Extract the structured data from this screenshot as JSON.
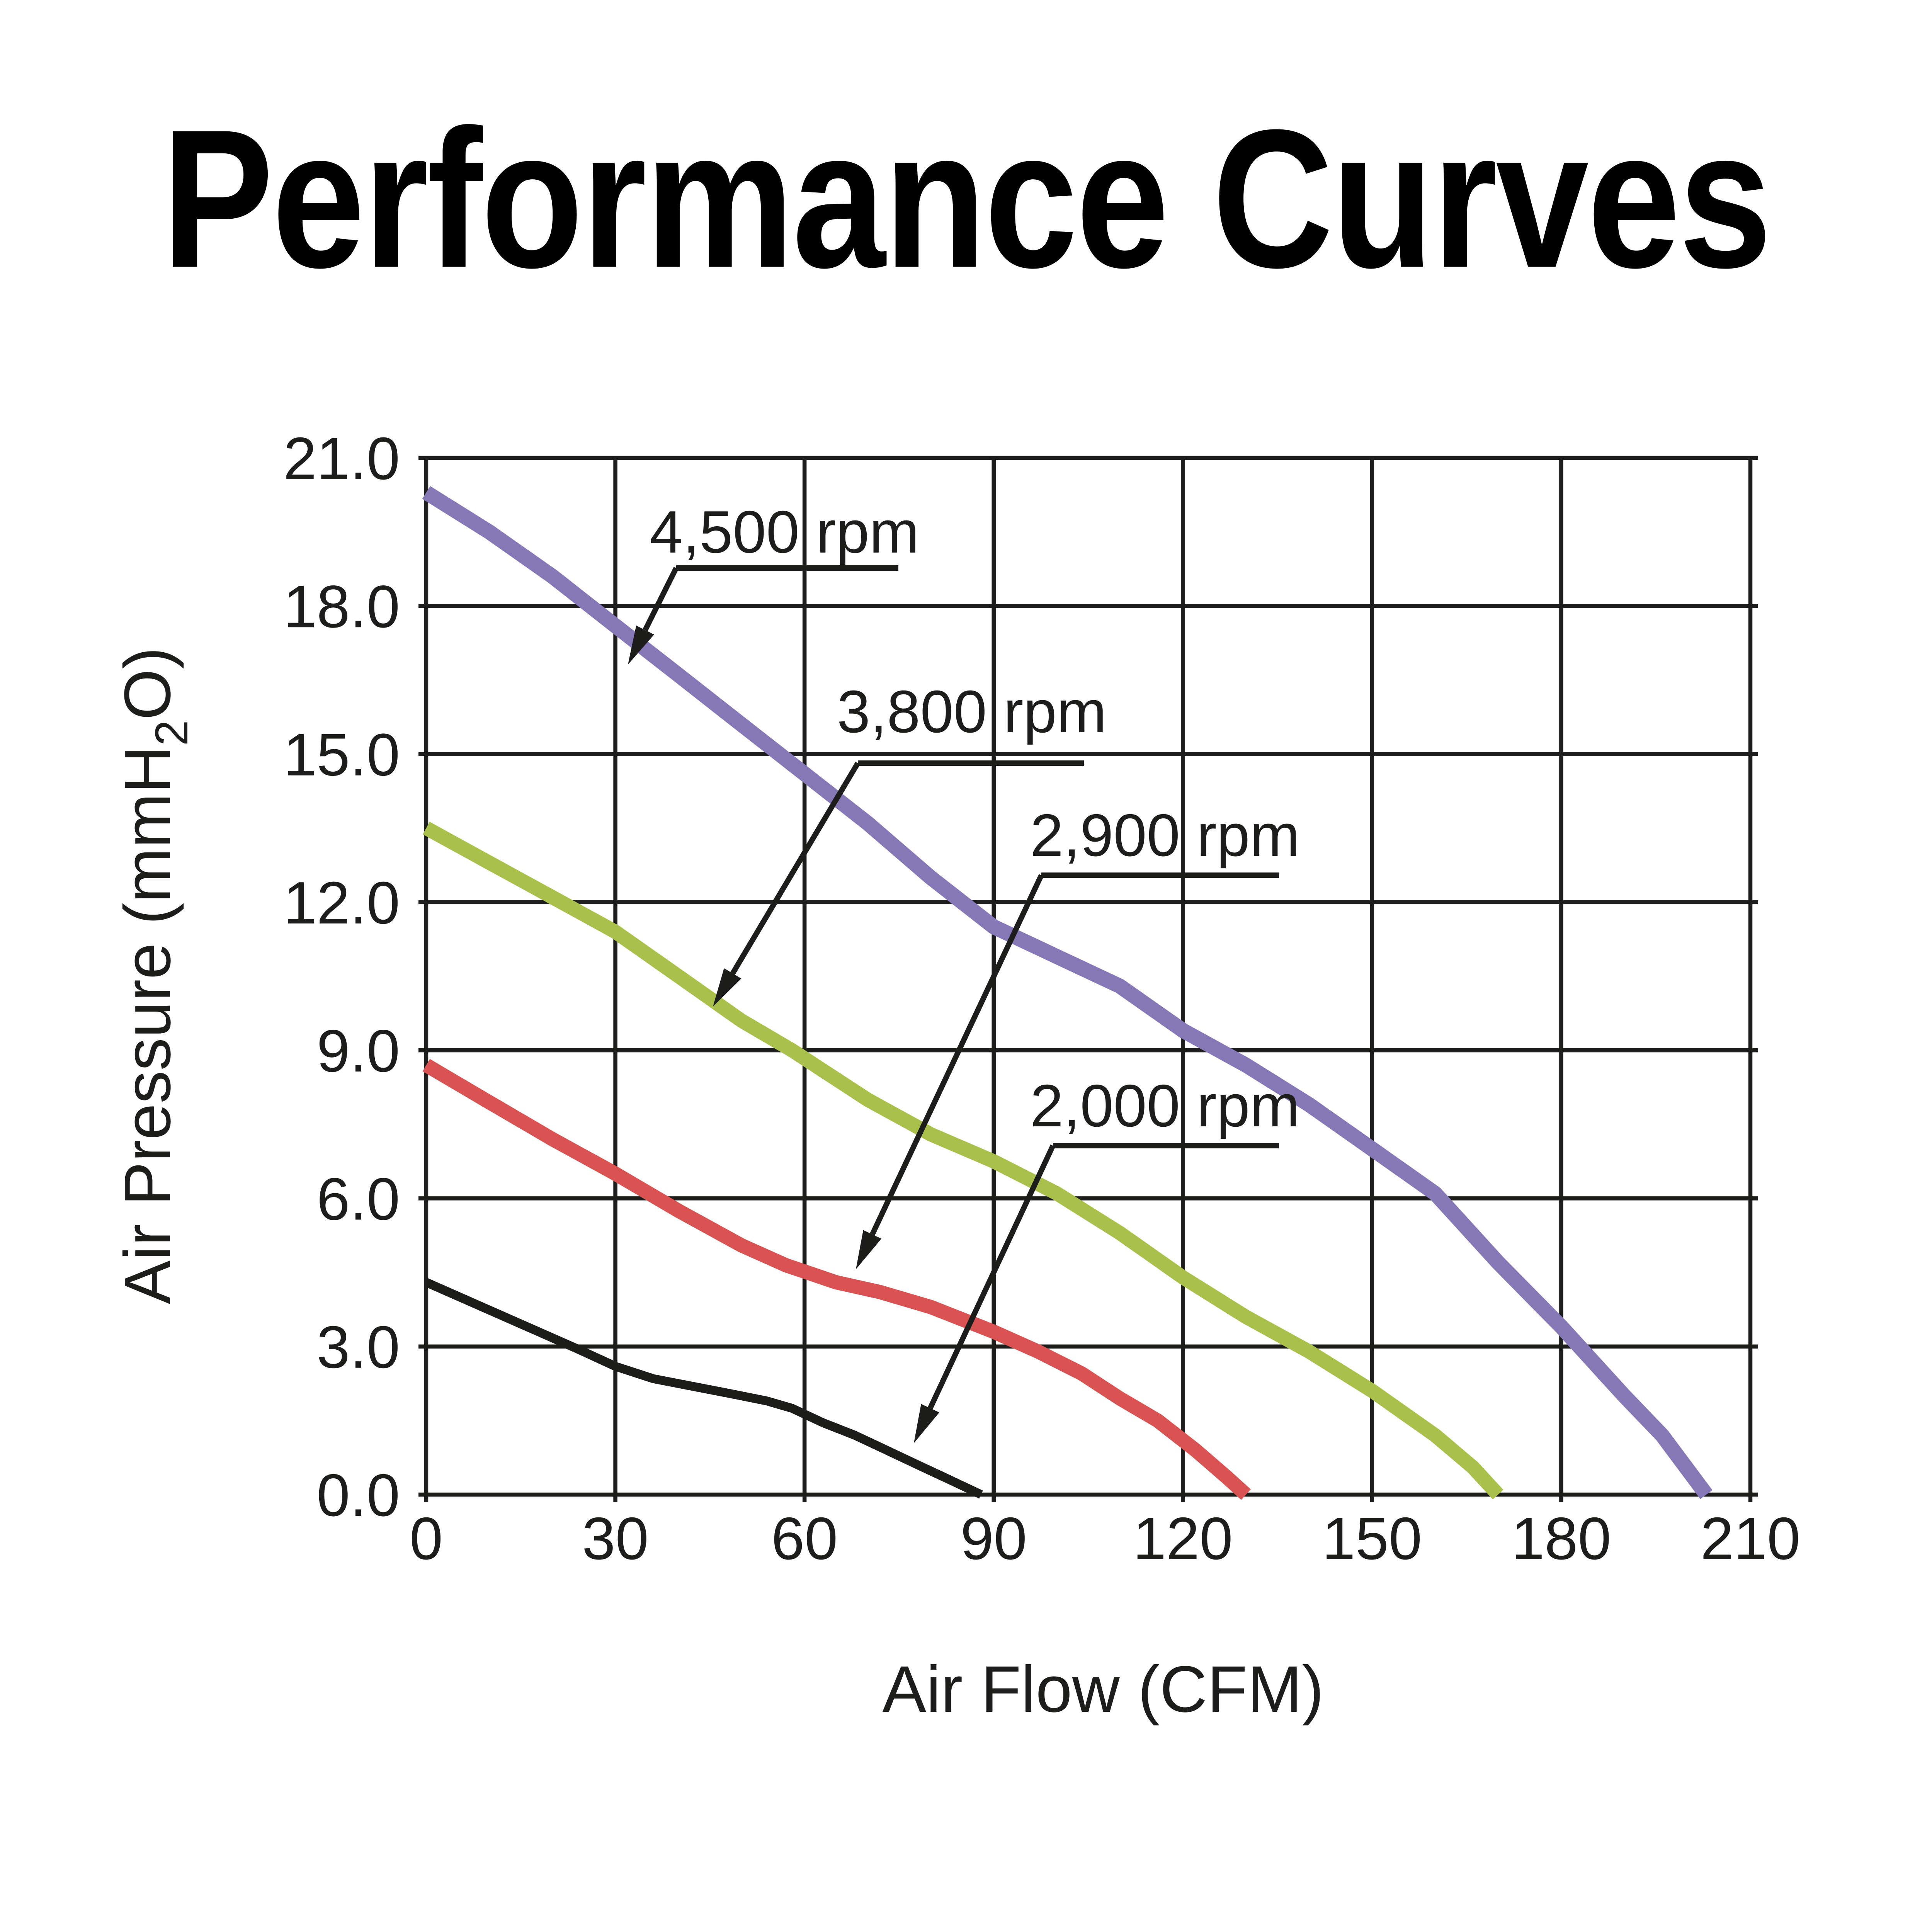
{
  "chart_data": {
    "type": "line",
    "title": "Performance Curves",
    "xlabel": "Air Flow (CFM)",
    "ylabel": "Air Pressure (mmH2O)",
    "ylabel_parts": [
      "Air Pressure (mmH",
      "2",
      "O)"
    ],
    "xlim": [
      0,
      210
    ],
    "ylim": [
      0,
      21
    ],
    "xticks": [
      0,
      30,
      60,
      90,
      120,
      150,
      180,
      210
    ],
    "xtick_labels": [
      "0",
      "30",
      "60",
      "90",
      "120",
      "150",
      "180",
      "210"
    ],
    "yticks": [
      0,
      3,
      6,
      9,
      12,
      15,
      18,
      21
    ],
    "ytick_labels": [
      "0.0",
      "3.0",
      "6.0",
      "9.0",
      "12.0",
      "15.0",
      "18.0",
      "21.0"
    ],
    "grid": true,
    "legend_position": "inline-callouts",
    "background_color": "#ffffff",
    "axis_color": "#1d1d1b",
    "series": [
      {
        "name": "4,500 rpm",
        "color": "#8678b7",
        "stroke_width": 7.8,
        "points": [
          [
            0,
            20.3
          ],
          [
            10,
            19.5
          ],
          [
            20,
            18.6
          ],
          [
            30,
            17.6
          ],
          [
            40,
            16.6
          ],
          [
            50,
            15.6
          ],
          [
            60,
            14.6
          ],
          [
            70,
            13.6
          ],
          [
            80,
            12.5
          ],
          [
            90,
            11.5
          ],
          [
            100,
            10.9
          ],
          [
            110,
            10.3
          ],
          [
            120,
            9.4
          ],
          [
            130,
            8.7
          ],
          [
            140,
            7.9
          ],
          [
            150,
            7.0
          ],
          [
            160,
            6.1
          ],
          [
            170,
            4.7
          ],
          [
            180,
            3.4
          ],
          [
            190,
            2.0
          ],
          [
            196,
            1.2
          ],
          [
            203,
            0
          ]
        ]
      },
      {
        "name": "3,800 rpm",
        "color": "#a9c04b",
        "stroke_width": 7.4,
        "points": [
          [
            0,
            13.5
          ],
          [
            10,
            12.8
          ],
          [
            20,
            12.1
          ],
          [
            30,
            11.4
          ],
          [
            40,
            10.5
          ],
          [
            50,
            9.6
          ],
          [
            58,
            9.0
          ],
          [
            70,
            8.0
          ],
          [
            80,
            7.3
          ],
          [
            90,
            6.75
          ],
          [
            100,
            6.1
          ],
          [
            110,
            5.3
          ],
          [
            120,
            4.4
          ],
          [
            130,
            3.6
          ],
          [
            140,
            2.9
          ],
          [
            150,
            2.1
          ],
          [
            160,
            1.2
          ],
          [
            166,
            0.55
          ],
          [
            170,
            0
          ]
        ]
      },
      {
        "name": "2,900 rpm",
        "color": "#d95352",
        "stroke_width": 7.4,
        "points": [
          [
            0,
            8.7
          ],
          [
            10,
            7.95
          ],
          [
            20,
            7.2
          ],
          [
            30,
            6.5
          ],
          [
            40,
            5.75
          ],
          [
            50,
            5.05
          ],
          [
            57,
            4.65
          ],
          [
            65,
            4.3
          ],
          [
            72,
            4.1
          ],
          [
            80,
            3.8
          ],
          [
            90,
            3.3
          ],
          [
            97,
            2.9
          ],
          [
            104,
            2.45
          ],
          [
            110,
            1.95
          ],
          [
            116,
            1.5
          ],
          [
            122,
            0.9
          ],
          [
            127,
            0.35
          ],
          [
            130,
            0
          ]
        ]
      },
      {
        "name": "2,000 rpm",
        "color": "#1d1d1b",
        "stroke_width": 4.6,
        "points": [
          [
            0,
            4.3
          ],
          [
            8,
            3.85
          ],
          [
            16,
            3.4
          ],
          [
            24,
            2.95
          ],
          [
            30,
            2.6
          ],
          [
            36,
            2.35
          ],
          [
            42,
            2.2
          ],
          [
            48,
            2.05
          ],
          [
            54,
            1.9
          ],
          [
            58,
            1.75
          ],
          [
            63,
            1.45
          ],
          [
            68,
            1.2
          ],
          [
            73,
            0.9
          ],
          [
            78,
            0.6
          ],
          [
            83,
            0.3
          ],
          [
            88,
            0
          ]
        ]
      }
    ],
    "callouts": [
      {
        "label": "4,500 rpm",
        "text_x": 406,
        "text_y": 275,
        "underline_y": 294,
        "underline_x1": 350,
        "underline_x2": 465,
        "tip_x": 325,
        "tip_y": 344
      },
      {
        "label": "3,800 rpm",
        "text_x": 503,
        "text_y": 368,
        "underline_y": 395,
        "underline_x1": 444,
        "underline_x2": 561,
        "tip_x": 369,
        "tip_y": 521
      },
      {
        "label": "2,900 rpm",
        "text_x": 603,
        "text_y": 432,
        "underline_y": 453,
        "underline_x1": 539,
        "underline_x2": 662,
        "tip_x": 443,
        "tip_y": 657
      },
      {
        "label": "2,000 rpm",
        "text_x": 603,
        "text_y": 572,
        "underline_y": 593,
        "underline_x1": 545,
        "underline_x2": 662,
        "tip_x": 473,
        "tip_y": 747
      }
    ],
    "layout": {
      "plot_left": 220.6,
      "plot_right": 906,
      "plot_top": 237,
      "plot_bottom": 773.6,
      "grid_stroke": 2.1,
      "grid_overshoot": 4,
      "tick_font": 31,
      "callout_font": 31,
      "axis_title_font": 34,
      "callout_stroke": 2.8,
      "arrow_head_len": 20,
      "arrow_head_half": 5.2,
      "ytick_label_right_x": 207,
      "xtick_label_baseline_y": 807,
      "xlabel_x": 571,
      "xlabel_baseline_y": 886,
      "ylabel_x": 88,
      "ylabel_center_y": 505
    }
  }
}
